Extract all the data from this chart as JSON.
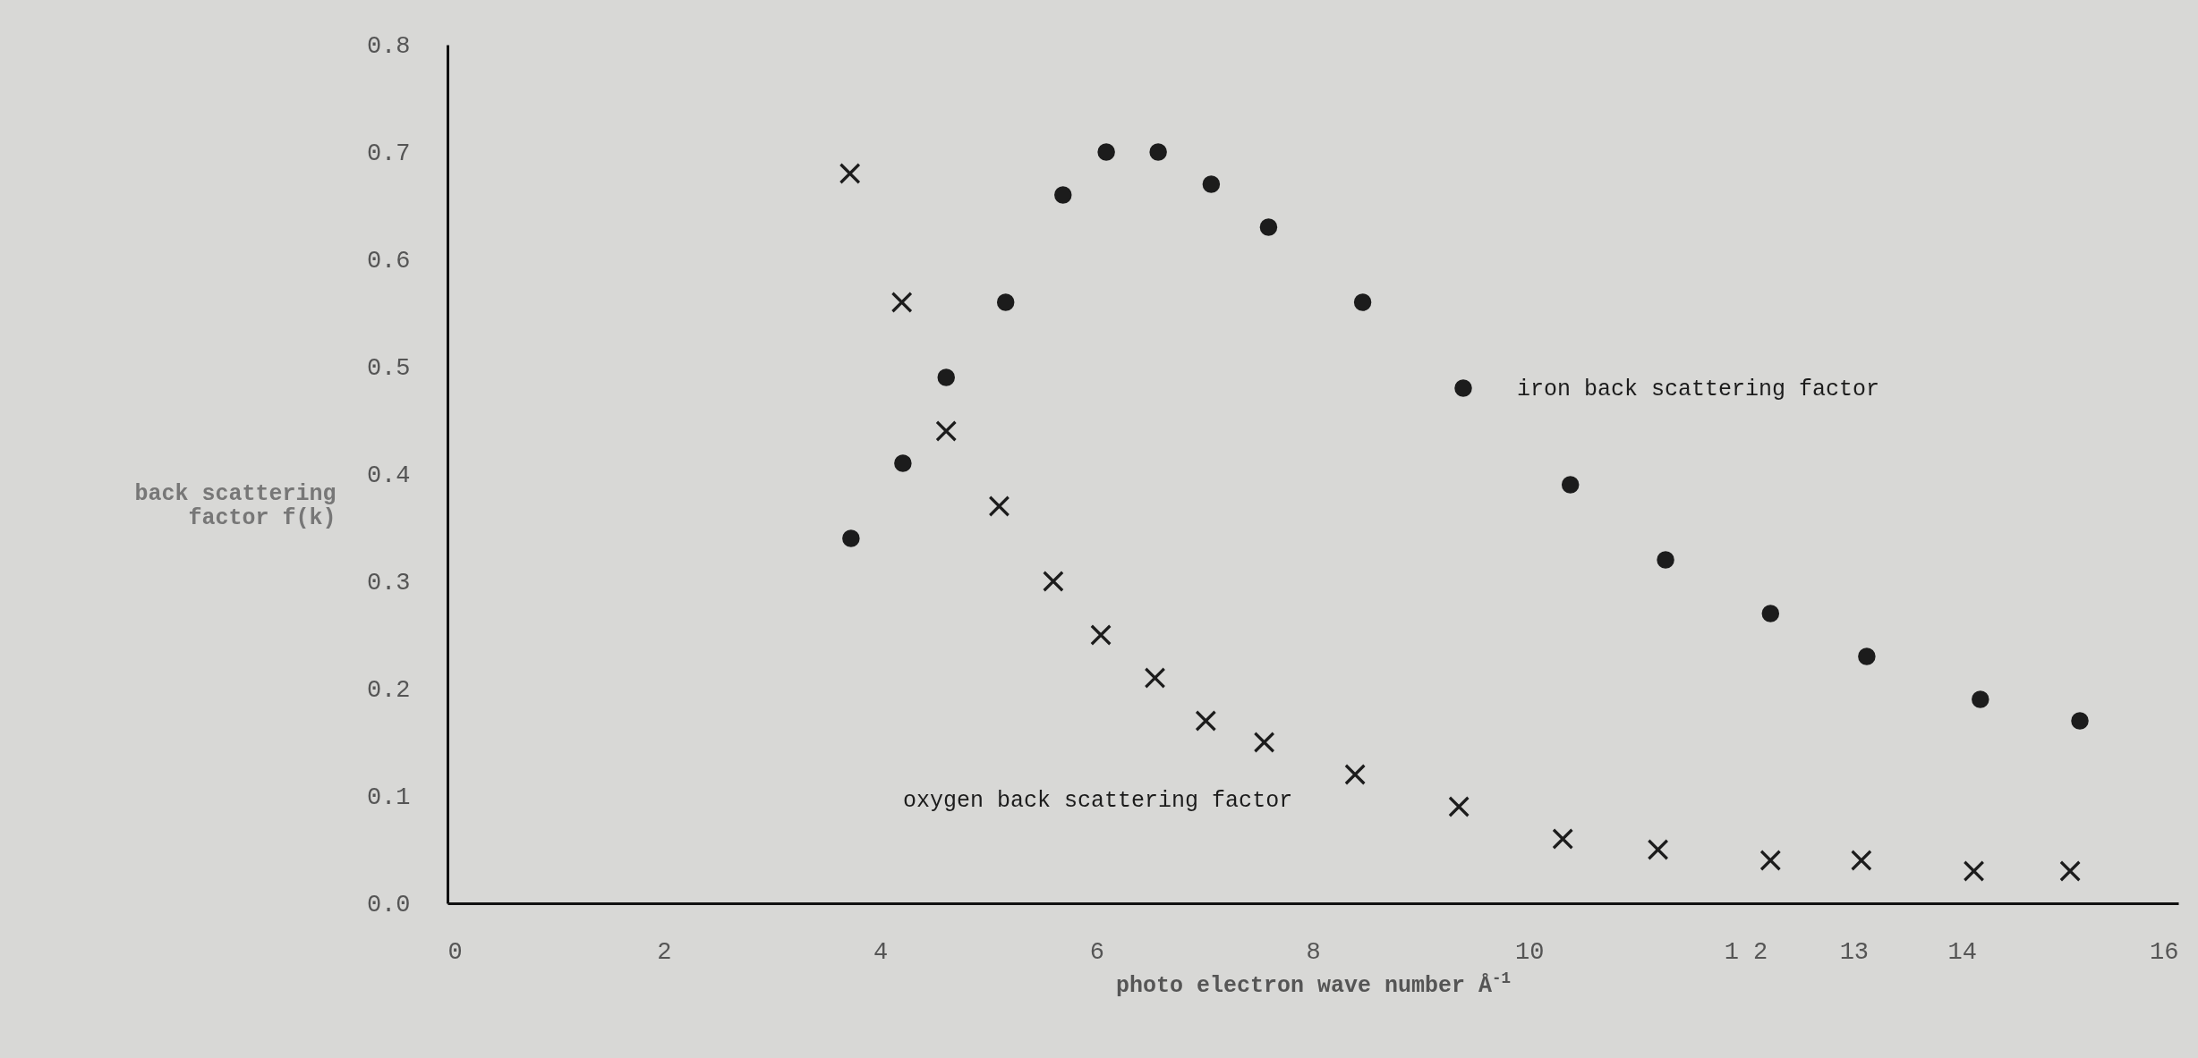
{
  "chart_data": {
    "type": "scatter",
    "xlabel": "photo electron wave number Å$^{-1}$",
    "ylabel": "back scattering factor f(k)",
    "xlim": [
      0,
      16
    ],
    "ylim": [
      0,
      0.8
    ],
    "xticks": [
      0,
      2,
      4,
      6,
      8,
      10,
      {
        "value": 12,
        "label": "1 2"
      },
      13,
      14,
      16
    ],
    "yticks": [
      {
        "value": 0,
        "label": "0.0"
      },
      0.1,
      0.2,
      0.3,
      0.4,
      0.5,
      0.6,
      0.7,
      0.8
    ],
    "grid": false,
    "series": [
      {
        "name": "iron back scattering factor",
        "color": "#1c1c1c",
        "marker": "circle",
        "x": [
          3.73,
          4.21,
          4.61,
          5.16,
          5.69,
          6.09,
          6.57,
          7.06,
          7.59,
          8.46,
          9.39,
          10.38,
          11.26,
          12.23,
          13.12,
          14.17,
          15.09
        ],
        "values": [
          0.34,
          0.41,
          0.49,
          0.56,
          0.66,
          0.7,
          0.7,
          0.67,
          0.63,
          0.56,
          0.48,
          0.39,
          0.32,
          0.27,
          0.23,
          0.19,
          0.17
        ]
      },
      {
        "name": "oxygen back scattering factor",
        "color": "#1c1c1c",
        "marker": "cross",
        "x": [
          3.72,
          4.2,
          4.61,
          5.1,
          5.6,
          6.04,
          6.54,
          7.01,
          7.55,
          8.39,
          9.35,
          10.31,
          11.19,
          12.23,
          13.07,
          14.11,
          15.0
        ],
        "values": [
          0.68,
          0.56,
          0.44,
          0.37,
          0.3,
          0.25,
          0.21,
          0.17,
          0.15,
          0.12,
          0.09,
          0.06,
          0.05,
          0.04,
          0.04,
          0.03,
          0.03
        ]
      }
    ]
  }
}
